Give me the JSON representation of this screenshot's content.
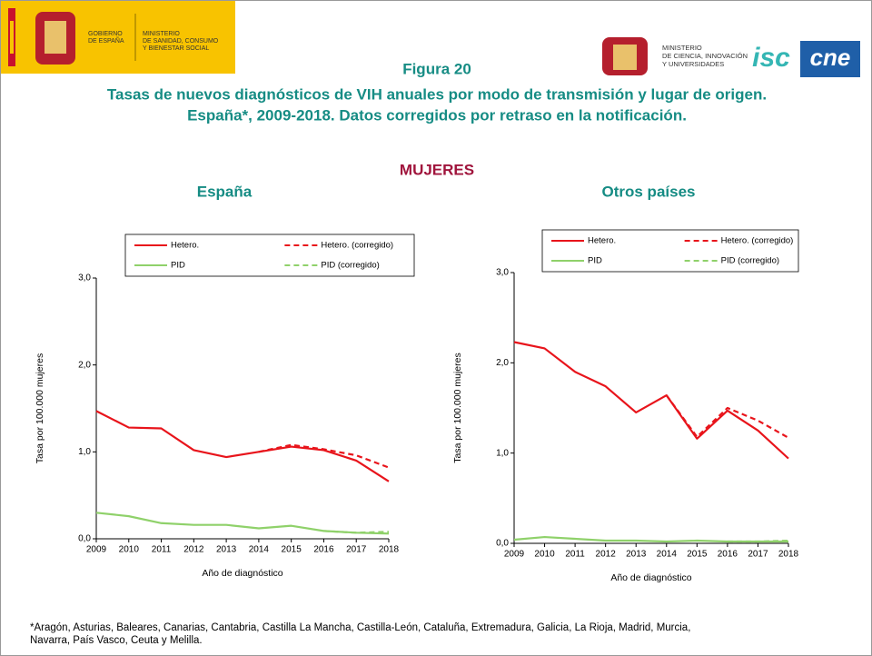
{
  "header": {
    "left_logo": [
      "GOBIERNO",
      "DE ESPAÑA"
    ],
    "left_ministry": [
      "MINISTERIO",
      "DE SANIDAD, CONSUMO",
      "Y BIENESTAR SOCIAL"
    ],
    "right_ministry": [
      "MINISTERIO",
      "DE CIENCIA, INNOVACIÓN",
      "Y UNIVERSIDADES"
    ],
    "isc": "isc",
    "cne": "cne"
  },
  "figure": {
    "number": "Figura 20",
    "title": [
      "Tasas de nuevos diagnósticos de VIH anuales por modo de transmisión y lugar de origen.",
      "España*, 2009-2018. Datos corregidos por retraso en la notificación."
    ],
    "group": "MUJERES"
  },
  "chart_data": [
    {
      "type": "line",
      "title": "España",
      "x_label": "Año de diagnóstico",
      "y_label": "Tasa por 100.000 mujeres",
      "x": [
        2009,
        2010,
        2011,
        2012,
        2013,
        2014,
        2015,
        2016,
        2017,
        2018
      ],
      "xlim": [
        2009,
        2018
      ],
      "xticks": [
        2009,
        2010,
        2011,
        2012,
        2013,
        2014,
        2015,
        2016,
        2017,
        2018
      ],
      "ylim": [
        0,
        3
      ],
      "yticks": [
        {
          "value": 0,
          "label": "0,0"
        },
        {
          "value": 1,
          "label": "1,0"
        },
        {
          "value": 2,
          "label": "2,0"
        },
        {
          "value": 3,
          "label": "3,0"
        }
      ],
      "series": [
        {
          "name": "Hetero.",
          "color": "#e8141b",
          "linestyle": "solid",
          "values": [
            1.47,
            1.28,
            1.27,
            1.02,
            0.94,
            1.0,
            1.06,
            1.02,
            0.9,
            0.66
          ]
        },
        {
          "name": "Hetero. (corregido)",
          "color": "#e8141b",
          "linestyle": "dashed",
          "values": [
            null,
            null,
            null,
            null,
            null,
            1.0,
            1.08,
            1.03,
            0.96,
            0.82
          ]
        },
        {
          "name": "PID",
          "color": "#8fd16a",
          "linestyle": "solid",
          "values": [
            0.3,
            0.26,
            0.18,
            0.16,
            0.16,
            0.12,
            0.15,
            0.09,
            0.07,
            0.06
          ]
        },
        {
          "name": "PID (corregido)",
          "color": "#8fd16a",
          "linestyle": "dashed",
          "values": [
            null,
            null,
            null,
            null,
            null,
            null,
            null,
            0.09,
            0.07,
            0.08
          ]
        }
      ]
    },
    {
      "type": "line",
      "title": "Otros países",
      "x_label": "Año de diagnóstico",
      "y_label": "Tasa por 100.000 mujeres",
      "x": [
        2009,
        2010,
        2011,
        2012,
        2013,
        2014,
        2015,
        2016,
        2017,
        2018
      ],
      "xlim": [
        2009,
        2018
      ],
      "xticks": [
        2009,
        2010,
        2011,
        2012,
        2013,
        2014,
        2015,
        2016,
        2017,
        2018
      ],
      "ylim": [
        0,
        3
      ],
      "yticks": [
        {
          "value": 0,
          "label": "0,0"
        },
        {
          "value": 1,
          "label": "1,0"
        },
        {
          "value": 2,
          "label": "2,0"
        },
        {
          "value": 3,
          "label": "3,0"
        }
      ],
      "series": [
        {
          "name": "Hetero.",
          "color": "#e8141b",
          "linestyle": "solid",
          "values": [
            2.23,
            2.16,
            1.9,
            1.74,
            1.45,
            1.64,
            1.16,
            1.47,
            1.25,
            0.94
          ]
        },
        {
          "name": "Hetero. (corregido)",
          "color": "#e8141b",
          "linestyle": "dashed",
          "values": [
            null,
            null,
            null,
            null,
            null,
            1.64,
            1.18,
            1.5,
            1.36,
            1.17
          ]
        },
        {
          "name": "PID",
          "color": "#8fd16a",
          "linestyle": "solid",
          "values": [
            0.04,
            0.07,
            0.05,
            0.03,
            0.03,
            0.02,
            0.03,
            0.02,
            0.02,
            0.02
          ]
        },
        {
          "name": "PID (corregido)",
          "color": "#8fd16a",
          "linestyle": "dashed",
          "values": [
            null,
            null,
            null,
            null,
            null,
            null,
            null,
            0.02,
            0.02,
            0.03
          ]
        }
      ]
    }
  ],
  "footnote": "*Aragón, Asturias, Baleares, Canarias, Cantabria, Castilla La Mancha, Castilla-León, Cataluña, Extremadura, Galicia, La Rioja, Madrid, Murcia, Navarra, País Vasco, Ceuta y Melilla."
}
